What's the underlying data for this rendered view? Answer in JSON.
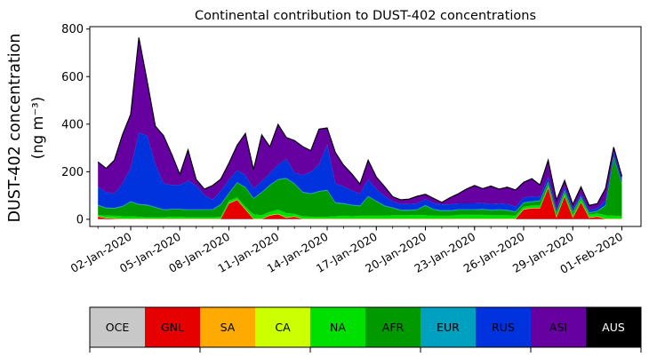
{
  "chart_data": {
    "type": "area",
    "stacked": true,
    "title": "Continental contribution to DUST-402 concentrations",
    "ylabel_line1": "DUST-402 concentration",
    "ylabel_line2": "(ng m⁻³)",
    "ylim": [
      -30,
      810
    ],
    "yticks": [
      0,
      200,
      400,
      600,
      800
    ],
    "x_dates": [
      "2019-12-31",
      "2020-01-01",
      "2020-01-02",
      "2020-01-03",
      "2020-01-04",
      "2020-01-05",
      "2020-01-06",
      "2020-01-07",
      "2020-01-08",
      "2020-01-09",
      "2020-01-10",
      "2020-01-11",
      "2020-01-12",
      "2020-01-13",
      "2020-01-14",
      "2020-01-15",
      "2020-01-16",
      "2020-01-17",
      "2020-01-18",
      "2020-01-19",
      "2020-01-20",
      "2020-01-21",
      "2020-01-22",
      "2020-01-23",
      "2020-01-24",
      "2020-01-25",
      "2020-01-26",
      "2020-01-27",
      "2020-01-28",
      "2020-01-29",
      "2020-01-30",
      "2020-01-31",
      "2020-02-01"
    ],
    "xtick_labels": [
      "02-Jan-2020",
      "05-Jan-2020",
      "08-Jan-2020",
      "11-Jan-2020",
      "14-Jan-2020",
      "17-Jan-2020",
      "20-Jan-2020",
      "23-Jan-2020",
      "26-Jan-2020",
      "29-Jan-2020",
      "01-Feb-2020"
    ],
    "xtick_dates": [
      "2020-01-02",
      "2020-01-05",
      "2020-01-08",
      "2020-01-11",
      "2020-01-14",
      "2020-01-17",
      "2020-01-20",
      "2020-01-23",
      "2020-01-26",
      "2020-01-29",
      "2020-02-01"
    ],
    "x": [
      "2019-12-31 00:00",
      "2019-12-31 12:00",
      "2020-01-01 00:00",
      "2020-01-01 12:00",
      "2020-01-02 00:00",
      "2020-01-02 12:00",
      "2020-01-03 00:00",
      "2020-01-03 12:00",
      "2020-01-04 00:00",
      "2020-01-04 12:00",
      "2020-01-05 00:00",
      "2020-01-05 12:00",
      "2020-01-06 00:00",
      "2020-01-06 12:00",
      "2020-01-07 00:00",
      "2020-01-07 12:00",
      "2020-01-08 00:00",
      "2020-01-08 12:00",
      "2020-01-09 00:00",
      "2020-01-09 12:00",
      "2020-01-10 00:00",
      "2020-01-10 12:00",
      "2020-01-11 00:00",
      "2020-01-11 12:00",
      "2020-01-12 00:00",
      "2020-01-12 12:00",
      "2020-01-13 00:00",
      "2020-01-13 12:00",
      "2020-01-14 00:00",
      "2020-01-14 12:00",
      "2020-01-15 00:00",
      "2020-01-15 12:00",
      "2020-01-16 00:00",
      "2020-01-16 12:00",
      "2020-01-17 00:00",
      "2020-01-17 12:00",
      "2020-01-18 00:00",
      "2020-01-18 12:00",
      "2020-01-19 00:00",
      "2020-01-19 12:00",
      "2020-01-20 00:00",
      "2020-01-20 12:00",
      "2020-01-21 00:00",
      "2020-01-21 12:00",
      "2020-01-22 00:00",
      "2020-01-22 12:00",
      "2020-01-23 00:00",
      "2020-01-23 12:00",
      "2020-01-24 00:00",
      "2020-01-24 12:00",
      "2020-01-25 00:00",
      "2020-01-25 12:00",
      "2020-01-26 00:00",
      "2020-01-26 12:00",
      "2020-01-27 00:00",
      "2020-01-27 12:00",
      "2020-01-28 00:00",
      "2020-01-28 12:00",
      "2020-01-29 00:00",
      "2020-01-29 12:00",
      "2020-01-30 00:00",
      "2020-01-30 12:00",
      "2020-01-31 00:00",
      "2020-01-31 12:00",
      "2020-02-01 00:00"
    ],
    "series": [
      {
        "name": "OCE",
        "color": "#c8c8c8",
        "values": [
          1,
          1,
          1,
          1,
          1,
          1,
          1,
          1,
          1,
          1,
          1,
          1,
          1,
          1,
          1,
          1,
          1,
          1,
          1,
          1,
          1,
          1,
          1,
          1,
          1,
          1,
          1,
          1,
          1,
          1,
          1,
          1,
          1,
          1,
          1,
          1,
          1,
          1,
          1,
          1,
          1,
          1,
          1,
          1,
          1,
          1,
          1,
          1,
          1,
          1,
          1,
          1,
          1,
          1,
          1,
          1,
          1,
          1,
          1,
          1,
          1,
          1,
          1,
          1,
          1
        ]
      },
      {
        "name": "GNL",
        "color": "#e60000",
        "values": [
          10,
          3,
          2,
          0,
          0,
          0,
          0,
          0,
          0,
          0,
          0,
          0,
          0,
          0,
          0,
          0,
          65,
          80,
          40,
          0,
          0,
          15,
          20,
          5,
          10,
          0,
          0,
          0,
          0,
          0,
          0,
          0,
          0,
          0,
          0,
          0,
          0,
          0,
          0,
          0,
          0,
          0,
          0,
          0,
          0,
          0,
          0,
          0,
          0,
          0,
          0,
          0,
          40,
          45,
          45,
          130,
          5,
          95,
          5,
          70,
          5,
          10,
          0,
          0,
          0
        ]
      },
      {
        "name": "SA",
        "color": "#ffaa00",
        "values": [
          1,
          1,
          1,
          1,
          1,
          1,
          1,
          1,
          1,
          1,
          1,
          1,
          1,
          1,
          1,
          1,
          1,
          1,
          1,
          1,
          1,
          1,
          1,
          1,
          1,
          1,
          1,
          1,
          1,
          1,
          1,
          1,
          1,
          1,
          1,
          1,
          1,
          1,
          1,
          1,
          1,
          1,
          1,
          1,
          1,
          1,
          1,
          1,
          1,
          1,
          1,
          1,
          1,
          1,
          1,
          1,
          1,
          1,
          1,
          1,
          1,
          1,
          1,
          1,
          1
        ]
      },
      {
        "name": "CA",
        "color": "#ccff00",
        "values": [
          1,
          1,
          1,
          1,
          1,
          1,
          1,
          1,
          1,
          1,
          1,
          1,
          1,
          1,
          1,
          1,
          1,
          1,
          1,
          1,
          1,
          1,
          1,
          1,
          1,
          1,
          1,
          1,
          1,
          1,
          1,
          1,
          1,
          1,
          1,
          1,
          1,
          1,
          1,
          1,
          1,
          1,
          1,
          1,
          1,
          1,
          1,
          1,
          1,
          1,
          1,
          1,
          1,
          1,
          1,
          1,
          1,
          1,
          1,
          1,
          1,
          1,
          1,
          1,
          1
        ]
      },
      {
        "name": "NA",
        "color": "#00e000",
        "values": [
          5,
          10,
          10,
          10,
          10,
          8,
          6,
          6,
          6,
          8,
          8,
          6,
          6,
          6,
          6,
          8,
          10,
          10,
          10,
          18,
          14,
          14,
          18,
          18,
          10,
          10,
          8,
          8,
          8,
          10,
          12,
          10,
          12,
          12,
          12,
          12,
          14,
          14,
          14,
          16,
          14,
          12,
          12,
          12,
          16,
          16,
          16,
          16,
          14,
          14,
          14,
          12,
          10,
          10,
          10,
          10,
          10,
          12,
          12,
          12,
          12,
          12,
          14,
          12,
          10
        ]
      },
      {
        "name": "AFR",
        "color": "#009900",
        "values": [
          40,
          30,
          30,
          40,
          60,
          50,
          50,
          40,
          30,
          30,
          30,
          30,
          30,
          30,
          30,
          50,
          30,
          60,
          80,
          65,
          95,
          110,
          125,
          145,
          125,
          100,
          95,
          105,
          110,
          55,
          50,
          45,
          40,
          80,
          60,
          40,
          30,
          20,
          20,
          20,
          40,
          25,
          20,
          20,
          20,
          20,
          20,
          22,
          20,
          22,
          20,
          15,
          15,
          15,
          18,
          12,
          10,
          10,
          10,
          8,
          6,
          8,
          40,
          245,
          135
        ]
      },
      {
        "name": "EUR",
        "color": "#00a0c0",
        "values": [
          3,
          3,
          3,
          3,
          3,
          3,
          3,
          3,
          3,
          3,
          3,
          3,
          3,
          3,
          3,
          3,
          3,
          3,
          3,
          3,
          3,
          3,
          3,
          3,
          3,
          3,
          3,
          3,
          3,
          3,
          3,
          3,
          3,
          3,
          3,
          3,
          3,
          3,
          3,
          3,
          3,
          3,
          3,
          3,
          3,
          3,
          3,
          3,
          3,
          3,
          3,
          3,
          3,
          3,
          3,
          3,
          3,
          3,
          3,
          3,
          3,
          3,
          3,
          3,
          3
        ]
      },
      {
        "name": "RUS",
        "color": "#0033dd",
        "values": [
          75,
          65,
          60,
          95,
          140,
          300,
          290,
          180,
          110,
          100,
          100,
          120,
          100,
          60,
          40,
          55,
          55,
          50,
          50,
          40,
          45,
          50,
          60,
          80,
          45,
          70,
          90,
          110,
          190,
          80,
          70,
          60,
          50,
          70,
          50,
          40,
          25,
          25,
          25,
          25,
          25,
          25,
          25,
          25,
          25,
          25,
          25,
          25,
          25,
          25,
          25,
          20,
          20,
          20,
          15,
          20,
          10,
          15,
          10,
          10,
          10,
          10,
          20,
          20,
          15
        ]
      },
      {
        "name": "ASI",
        "color": "#6600a0",
        "values": [
          105,
          100,
          140,
          205,
          225,
          400,
          230,
          160,
          200,
          130,
          45,
          130,
          25,
          25,
          60,
          50,
          70,
          105,
          175,
          80,
          195,
          110,
          170,
          90,
          135,
          120,
          90,
          150,
          70,
          130,
          90,
          70,
          40,
          80,
          50,
          40,
          20,
          17,
          20,
          30,
          20,
          20,
          8,
          28,
          40,
          60,
          75,
          60,
          75,
          60,
          70,
          70,
          65,
          75,
          50,
          70,
          40,
          25,
          20,
          30,
          20,
          20,
          50,
          20,
          15
        ]
      },
      {
        "name": "AUS",
        "color": "#000000",
        "values": [
          0,
          0,
          0,
          0,
          0,
          0,
          0,
          0,
          0,
          0,
          0,
          0,
          0,
          0,
          0,
          0,
          0,
          0,
          0,
          0,
          0,
          0,
          0,
          0,
          0,
          0,
          0,
          0,
          0,
          0,
          0,
          0,
          0,
          0,
          0,
          0,
          0,
          0,
          0,
          0,
          0,
          0,
          0,
          0,
          0,
          0,
          0,
          0,
          0,
          0,
          0,
          0,
          0,
          0,
          0,
          0,
          0,
          0,
          0,
          0,
          0,
          0,
          0,
          0,
          0
        ]
      }
    ],
    "legend_placement": "bottom"
  }
}
